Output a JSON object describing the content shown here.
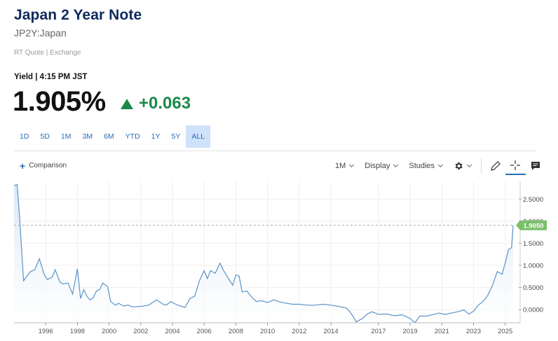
{
  "header": {
    "title": "Japan 2 Year Note",
    "symbol": "JP2Y:Japan",
    "quote_source": "RT Quote | Exchange"
  },
  "quote": {
    "yield_label": "Yield | 4:15 PM JST",
    "price": "1.905%",
    "change": "+0.063"
  },
  "ranges": [
    "1D",
    "5D",
    "1M",
    "3M",
    "6M",
    "YTD",
    "1Y",
    "5Y",
    "ALL"
  ],
  "active_range": "ALL",
  "toolbar": {
    "comparison": "Comparison",
    "interval": "1M",
    "display": "Display",
    "studies": "Studies"
  },
  "colors": {
    "line": "#5b93c9",
    "area_top": "#d7e6f5",
    "positive": "#1a8a4b",
    "last_price_badge": "#7bbf6a",
    "accent": "#2a6cb5"
  },
  "chart_data": {
    "type": "area",
    "title": "",
    "xlabel": "",
    "ylabel": "",
    "xlim": [
      1994.0,
      2025.5
    ],
    "ylim": [
      -0.3,
      2.9
    ],
    "x_ticks": [
      "1996",
      "1998",
      "2000",
      "2002",
      "2004",
      "2006",
      "2008",
      "2010",
      "2012",
      "2014",
      "2017",
      "2019",
      "2021",
      "2023",
      "2025"
    ],
    "y_ticks": [
      "2.5000",
      "2.0000",
      "1.5000",
      "1.0000",
      "0.5000",
      "0.0000"
    ],
    "last_value_label": "1.9050",
    "last_value": 1.905,
    "grid": true,
    "series": [
      {
        "x": [
          1994.0,
          1994.2,
          1994.35,
          1994.6,
          1995.0,
          1995.3,
          1995.6,
          1995.9,
          1996.1,
          1996.4,
          1996.6,
          1996.9,
          1997.1,
          1997.4,
          1997.7,
          1998.0,
          1998.2,
          1998.4,
          1998.6,
          1998.8,
          1999.0,
          1999.2,
          1999.4,
          1999.6,
          1999.9,
          2000.1,
          2000.4,
          2000.6,
          2000.9,
          2001.2,
          2001.5,
          2002.0,
          2002.5,
          2003.0,
          2003.4,
          2003.6,
          2003.9,
          2004.2,
          2004.5,
          2004.8,
          2005.1,
          2005.4,
          2005.7,
          2006.0,
          2006.2,
          2006.4,
          2006.7,
          2007.0,
          2007.2,
          2007.5,
          2007.8,
          2008.0,
          2008.2,
          2008.4,
          2008.7,
          2009.0,
          2009.3,
          2009.6,
          2010.0,
          2010.4,
          2010.8,
          2011.2,
          2011.6,
          2012.0,
          2012.5,
          2013.0,
          2013.5,
          2014.0,
          2014.5,
          2015.0,
          2015.3,
          2015.6,
          2016.0,
          2016.3,
          2016.6,
          2017.0,
          2017.5,
          2018.0,
          2018.5,
          2019.0,
          2019.3,
          2019.6,
          2020.0,
          2020.4,
          2020.8,
          2021.2,
          2021.6,
          2022.0,
          2022.4,
          2022.7,
          2023.0,
          2023.3,
          2023.6,
          2023.9,
          2024.2,
          2024.5,
          2024.8,
          2025.0,
          2025.2,
          2025.4,
          2025.5
        ],
        "y": [
          2.8,
          2.83,
          2.1,
          0.65,
          0.85,
          0.9,
          1.15,
          0.8,
          0.68,
          0.73,
          0.9,
          0.62,
          0.58,
          0.6,
          0.35,
          0.92,
          0.25,
          0.45,
          0.3,
          0.22,
          0.26,
          0.42,
          0.45,
          0.6,
          0.52,
          0.18,
          0.1,
          0.14,
          0.08,
          0.1,
          0.06,
          0.07,
          0.1,
          0.22,
          0.12,
          0.1,
          0.18,
          0.12,
          0.08,
          0.05,
          0.25,
          0.3,
          0.65,
          0.88,
          0.7,
          0.88,
          0.82,
          1.05,
          0.9,
          0.72,
          0.55,
          0.78,
          0.76,
          0.4,
          0.42,
          0.28,
          0.18,
          0.2,
          0.16,
          0.22,
          0.17,
          0.14,
          0.12,
          0.12,
          0.1,
          0.1,
          0.12,
          0.1,
          0.07,
          0.03,
          -0.1,
          -0.28,
          -0.2,
          -0.1,
          -0.05,
          -0.11,
          -0.1,
          -0.14,
          -0.12,
          -0.2,
          -0.3,
          -0.15,
          -0.15,
          -0.12,
          -0.08,
          -0.11,
          -0.08,
          -0.05,
          -0.01,
          -0.1,
          -0.04,
          0.1,
          0.18,
          0.32,
          0.55,
          0.86,
          0.8,
          1.05,
          1.35,
          1.4,
          1.905
        ]
      }
    ]
  }
}
